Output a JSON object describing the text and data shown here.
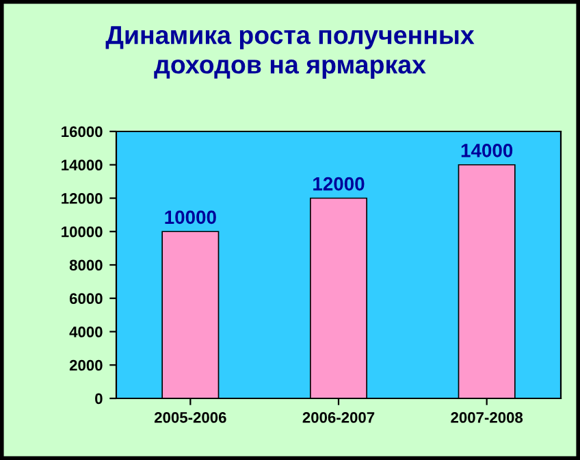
{
  "chart_data": {
    "type": "bar",
    "title": "Динамика роста полученных\nдоходов на ярмарках",
    "categories": [
      "2005-2006",
      "2006-2007",
      "2007-2008"
    ],
    "values": [
      10000,
      12000,
      14000
    ],
    "color": "#ff99cc",
    "ylim": [
      0,
      16000
    ],
    "yticks": [
      0,
      2000,
      4000,
      6000,
      8000,
      10000,
      12000,
      14000,
      16000
    ],
    "data_labels": true,
    "grid": false,
    "legend": false
  }
}
